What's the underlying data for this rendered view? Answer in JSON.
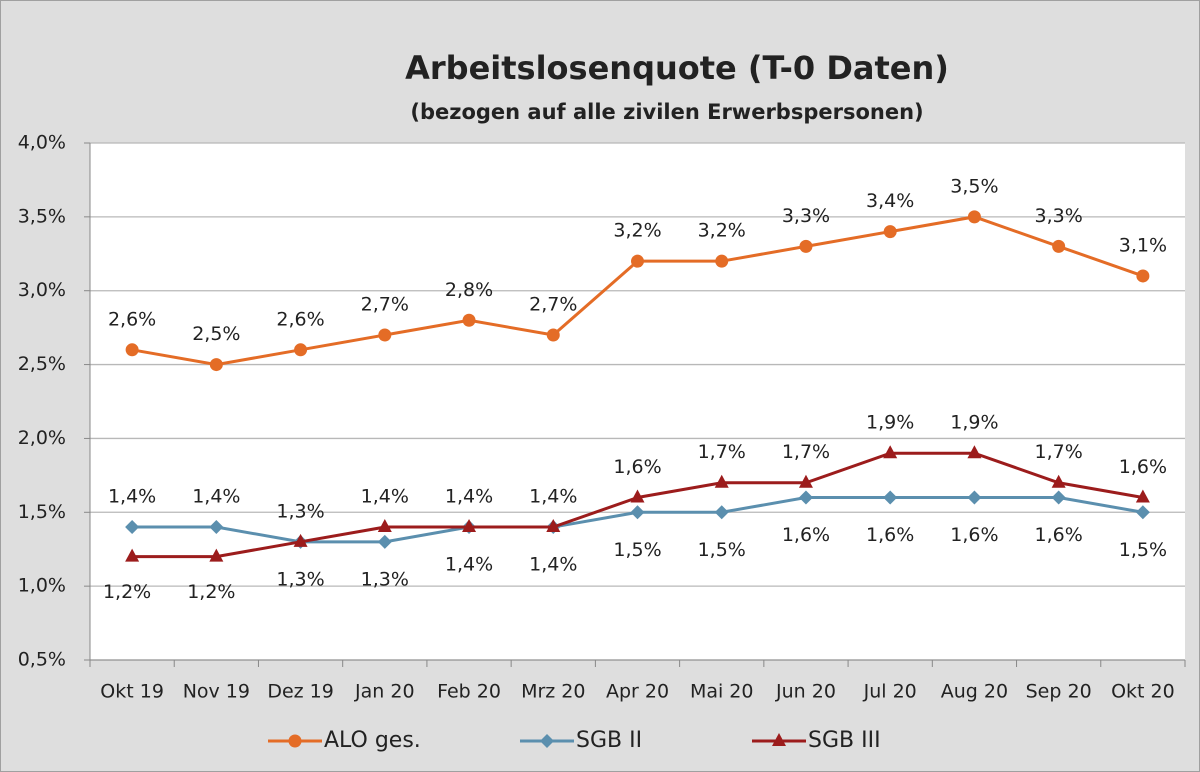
{
  "chart_data": {
    "type": "line",
    "title": "Arbeitslosenquote (T-0 Daten)",
    "subtitle": "(bezogen auf alle zivilen Erwerbspersonen)",
    "categories": [
      "Okt 19",
      "Nov 19",
      "Dez 19",
      "Jan 20",
      "Feb 20",
      "Mrz 20",
      "Apr 20",
      "Mai 20",
      "Jun 20",
      "Jul 20",
      "Aug 20",
      "Sep 20",
      "Okt 20"
    ],
    "series": [
      {
        "name": "ALO ges.",
        "color": "#e46c26",
        "marker": "circle",
        "values": [
          2.6,
          2.5,
          2.6,
          2.7,
          2.8,
          2.7,
          3.2,
          3.2,
          3.3,
          3.4,
          3.5,
          3.3,
          3.1
        ],
        "value_labels": [
          "2,6%",
          "2,5%",
          "2,6%",
          "2,7%",
          "2,8%",
          "2,7%",
          "3,2%",
          "3,2%",
          "3,3%",
          "3,4%",
          "3,5%",
          "3,3%",
          "3,1%"
        ]
      },
      {
        "name": "SGB II",
        "color": "#5b8fae",
        "marker": "diamond",
        "values": [
          1.4,
          1.4,
          1.3,
          1.3,
          1.4,
          1.4,
          1.5,
          1.5,
          1.6,
          1.6,
          1.6,
          1.6,
          1.5
        ],
        "value_labels": [
          "1,4%",
          "1,4%",
          "1,3%",
          "1,3%",
          "1,4%",
          "1,4%",
          "1,5%",
          "1,5%",
          "1,6%",
          "1,6%",
          "1,6%",
          "1,6%",
          "1,5%"
        ]
      },
      {
        "name": "SGB III",
        "color": "#9c1c1c",
        "marker": "triangle",
        "values": [
          1.2,
          1.2,
          1.3,
          1.4,
          1.4,
          1.4,
          1.6,
          1.7,
          1.7,
          1.9,
          1.9,
          1.7,
          1.6
        ],
        "value_labels": [
          "1,2%",
          "1,2%",
          "1,3%",
          "1,4%",
          "1,4%",
          "1,4%",
          "1,6%",
          "1,7%",
          "1,7%",
          "1,9%",
          "1,9%",
          "1,7%",
          "1,6%"
        ]
      }
    ],
    "ylim": [
      0.5,
      4.0
    ],
    "yticks": [
      {
        "value": 0.5,
        "label": "0,5%"
      },
      {
        "value": 1.0,
        "label": "1,0%"
      },
      {
        "value": 1.5,
        "label": "1,5%"
      },
      {
        "value": 2.0,
        "label": "2,0%"
      },
      {
        "value": 2.5,
        "label": "2,5%"
      },
      {
        "value": 3.0,
        "label": "3,0%"
      },
      {
        "value": 3.5,
        "label": "3,5%"
      },
      {
        "value": 4.0,
        "label": "4,0%"
      }
    ],
    "grid": true,
    "legend": "bottom"
  }
}
